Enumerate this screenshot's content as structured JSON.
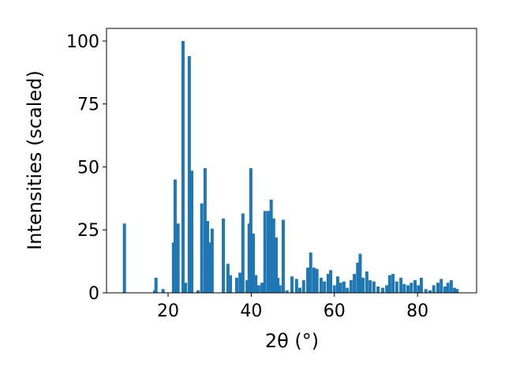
{
  "chart_data": {
    "type": "bar",
    "xlabel": "2θ (°)",
    "ylabel": "Intensities (scaled)",
    "color": "#1f77b4",
    "x": [
      9.5,
      16.8,
      17.1,
      18.8,
      21.3,
      21.7,
      22.4,
      23.6,
      24.2,
      25.1,
      25.7,
      27.2,
      28.1,
      28.9,
      29.5,
      30.0,
      30.6,
      33.3,
      34.4,
      35.0,
      36.5,
      37.3,
      38.0,
      39.0,
      39.5,
      39.9,
      40.5,
      41.1,
      41.8,
      42.6,
      43.3,
      44.1,
      44.8,
      45.4,
      46.0,
      46.4,
      46.9,
      47.7,
      48.6,
      49.8,
      50.9,
      51.7,
      52.6,
      53.6,
      54.3,
      55.1,
      55.8,
      56.8,
      57.6,
      58.5,
      59.1,
      60.0,
      60.8,
      61.5,
      62.3,
      63.1,
      64.0,
      64.8,
      65.6,
      66.2,
      66.9,
      67.8,
      68.6,
      69.5,
      70.5,
      71.6,
      72.6,
      73.3,
      74.1,
      75.0,
      76.0,
      76.8,
      77.7,
      78.5,
      79.4,
      80.2,
      80.9,
      82.0,
      83.0,
      83.9,
      84.9,
      85.7,
      86.6,
      87.3,
      88.1,
      88.9,
      89.5
    ],
    "values": [
      27.5,
      1,
      6,
      1.5,
      20,
      45,
      27.5,
      100,
      4,
      94,
      48.5,
      1,
      35.5,
      49.5,
      28.5,
      20,
      25.5,
      29.5,
      11.5,
      7,
      6,
      8,
      31.5,
      5,
      27.5,
      49.5,
      23.5,
      7,
      3,
      4,
      32.5,
      32.5,
      37,
      29.5,
      22,
      6,
      3,
      29,
      1,
      6.5,
      5.5,
      2,
      5,
      10,
      16,
      10,
      9.5,
      6,
      4.5,
      7.5,
      9,
      3,
      6.5,
      4,
      4.5,
      2,
      5,
      7.5,
      12,
      15.5,
      6,
      8.5,
      5,
      4.5,
      2.5,
      2,
      3,
      7,
      7.5,
      4.5,
      6,
      3.5,
      3,
      4,
      5,
      3,
      6,
      1.5,
      1,
      3,
      4,
      5.5,
      2.5,
      4,
      5,
      2,
      1.5
    ],
    "xlim": [
      5.2,
      94.2
    ],
    "xticks": [
      20,
      40,
      60,
      80
    ],
    "ylim": [
      0,
      105
    ],
    "yticks": [
      0,
      25,
      50,
      75,
      100
    ]
  }
}
